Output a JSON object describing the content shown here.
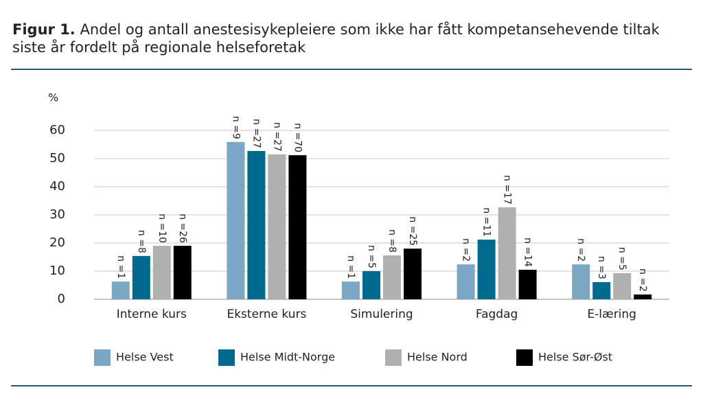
{
  "chart_data": {
    "type": "bar",
    "title_label": "Figur 1.",
    "title": "Andel og antall anestesisykepleiere som ikke har fått kompetansehevende tiltak siste år fordelt på regionale helseforetak",
    "y_label": "%",
    "categories": [
      "Interne kurs",
      "Eksterne kurs",
      "Simulering",
      "Fagdag",
      "E-læring"
    ],
    "series": [
      {
        "name": "Helse Vest",
        "color": "#7ba7c4",
        "values": [
          6.3,
          55.9,
          6.3,
          12.4,
          12.4
        ],
        "labels": [
          "n =1",
          "n =9",
          "n =1",
          "n =2",
          "n =2"
        ]
      },
      {
        "name": "Helse Midt-Norge",
        "color": "#006a8e",
        "values": [
          15.4,
          52.7,
          10,
          21.2,
          6.1
        ],
        "labels": [
          "n =8",
          "n =27",
          "n =5",
          "n =11",
          "n =3"
        ]
      },
      {
        "name": "Helse Nord",
        "color": "#b0b0b0",
        "values": [
          19,
          51.5,
          15.6,
          32.7,
          9.3
        ],
        "labels": [
          "n =10",
          "n =27",
          "n =8",
          "n =17",
          "n =5"
        ]
      },
      {
        "name": "Helse Sør-Øst",
        "color": "#000000",
        "values": [
          19,
          51.2,
          18,
          10.5,
          1.7
        ],
        "labels": [
          "n =26",
          "n =70",
          "n =25",
          "n =14",
          "n =2"
        ]
      }
    ],
    "ylim": [
      0,
      60
    ],
    "yticks": [
      0,
      10,
      20,
      30,
      40,
      50,
      60
    ],
    "grid": true,
    "legend": "bottom"
  }
}
